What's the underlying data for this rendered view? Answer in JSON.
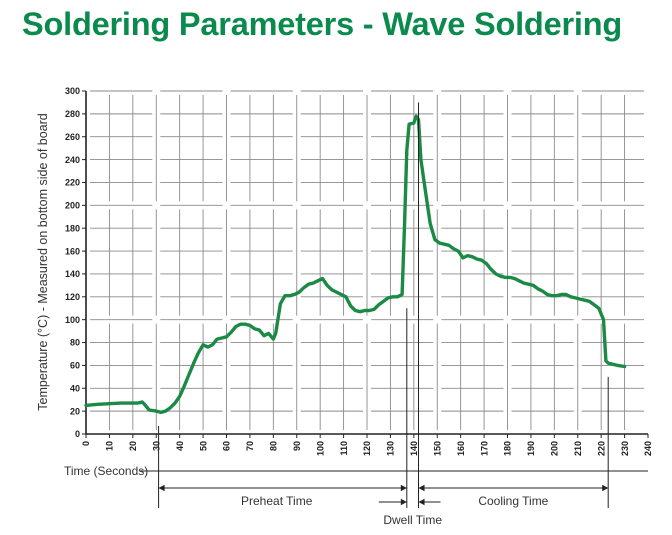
{
  "title": "Soldering Parameters - Wave Soldering",
  "colors": {
    "title": "#0b8a4e",
    "curve": "#1b8a45",
    "grid": "#8a8a8a",
    "axis": "#222222"
  },
  "chart_data": {
    "type": "line",
    "ylabel": "Temperature (°C) - Measured on bottom side of board",
    "xlim": [
      0,
      240
    ],
    "ylim": [
      0,
      300
    ],
    "x_ticks": [
      "0",
      "10",
      "20",
      "30",
      "40",
      "50",
      "60",
      "70",
      "80",
      "90",
      "100",
      "110",
      "120",
      "130",
      "140",
      "150",
      "160",
      "170",
      "180",
      "190",
      "200",
      "210",
      "220",
      "230",
      "240"
    ],
    "y_ticks": [
      "0",
      "20",
      "40",
      "60",
      "80",
      "100",
      "120",
      "140",
      "160",
      "180",
      "200",
      "220",
      "240",
      "260",
      "280",
      "300"
    ],
    "grid": true,
    "series": [
      {
        "x": [
          0,
          5,
          10,
          15,
          20,
          22,
          24,
          25,
          27,
          30,
          32,
          34,
          36,
          38,
          40,
          42,
          44,
          46,
          48,
          50,
          52,
          54,
          56,
          58,
          60,
          62,
          64,
          66,
          68,
          70,
          72,
          74,
          76,
          78,
          80,
          81,
          83,
          85,
          87,
          89,
          91,
          93,
          95,
          97,
          99,
          101,
          103,
          105,
          107,
          109,
          111,
          113,
          115,
          117,
          119,
          121,
          123,
          125,
          127,
          129,
          131,
          133,
          135,
          136,
          137,
          138,
          140,
          141,
          142,
          143,
          145,
          147,
          149,
          151,
          153,
          155,
          157,
          159,
          161,
          163,
          165,
          167,
          169,
          171,
          173,
          175,
          177,
          179,
          181,
          183,
          185,
          187,
          189,
          191,
          193,
          195,
          197,
          199,
          201,
          203,
          205,
          207,
          209,
          211,
          213,
          215,
          217,
          219,
          221,
          222,
          223,
          225,
          227,
          230
        ],
        "y": [
          25,
          26,
          26.5,
          27,
          27,
          27,
          28,
          26,
          21,
          20,
          19,
          20,
          23,
          27,
          33,
          42,
          52,
          62,
          71,
          78,
          76,
          78,
          83,
          84,
          85,
          89,
          94,
          96,
          96,
          95,
          92,
          91,
          86,
          88,
          83,
          88,
          114,
          121,
          121,
          122,
          124,
          128,
          131,
          132,
          134,
          136,
          130,
          126,
          124,
          122,
          120,
          112,
          108,
          107,
          108,
          108,
          109,
          113,
          116,
          119,
          120,
          120,
          122,
          182,
          248,
          271,
          272,
          278,
          275,
          240,
          212,
          184,
          170,
          167,
          166,
          165,
          162,
          160,
          154,
          156,
          155,
          153,
          152,
          149,
          144,
          140,
          138,
          137,
          137,
          136,
          134,
          132,
          131,
          130,
          127,
          125,
          122,
          121,
          121,
          122,
          122,
          120,
          119,
          118,
          117,
          116,
          113,
          110,
          100,
          64,
          62,
          61,
          60,
          59
        ]
      }
    ],
    "annotations": {
      "time_label": "Time (Seconds)",
      "preheat": "Preheat Time",
      "dwell": "Dwell Time",
      "cooling": "Cooling Time"
    },
    "markers_x": [
      31,
      137,
      142,
      223
    ]
  }
}
